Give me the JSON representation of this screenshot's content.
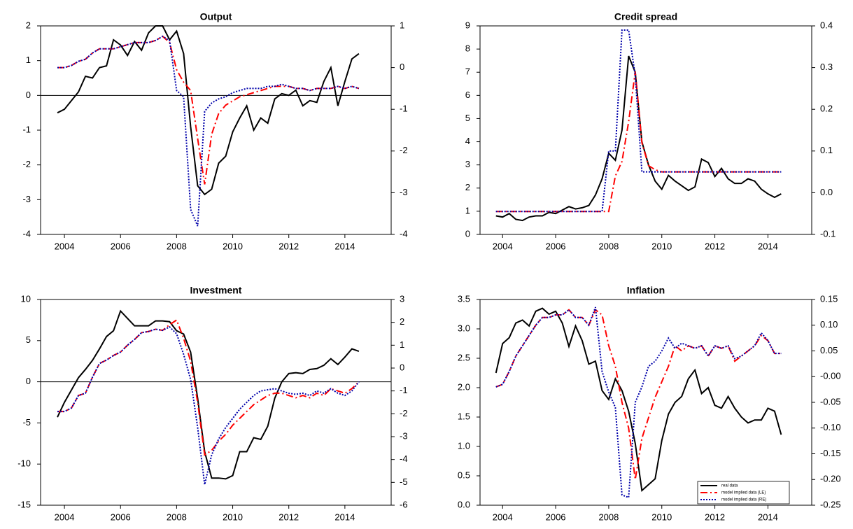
{
  "chart_data": [
    {
      "type": "line",
      "title": "Output",
      "zero_line": true,
      "x": [
        2003.75,
        2004,
        2004.25,
        2004.5,
        2004.75,
        2005,
        2005.25,
        2005.5,
        2005.75,
        2006,
        2006.25,
        2006.5,
        2006.75,
        2007,
        2007.25,
        2007.5,
        2007.75,
        2008,
        2008.25,
        2008.5,
        2008.75,
        2009,
        2009.25,
        2009.5,
        2009.75,
        2010,
        2010.25,
        2010.5,
        2010.75,
        2011,
        2011.25,
        2011.5,
        2011.75,
        2012,
        2012.25,
        2012.5,
        2012.75,
        2013,
        2013.25,
        2013.5,
        2013.75,
        2014,
        2014.25,
        2014.5
      ],
      "xlim": [
        2003.15,
        2015.65
      ],
      "xticks": [
        2004,
        2006,
        2008,
        2010,
        2012,
        2014
      ],
      "ylim": [
        -4,
        2
      ],
      "yticks": [
        -4,
        -3,
        -2,
        -1,
        0,
        1,
        2
      ],
      "y2lim": [
        -4,
        1
      ],
      "y2ticks": [
        -4,
        -3,
        -2,
        -1,
        0,
        1
      ],
      "series": [
        {
          "color": "#000000",
          "linestyle": "solid",
          "values": [
            -0.5,
            -0.4,
            -0.15,
            0.1,
            0.55,
            0.5,
            0.8,
            0.85,
            1.6,
            1.45,
            1.15,
            1.55,
            1.3,
            1.8,
            2.0,
            2.0,
            1.6,
            1.85,
            1.2,
            -0.9,
            -2.6,
            -2.85,
            -2.7,
            -1.95,
            -1.75,
            -1.05,
            -0.65,
            -0.3,
            -1.0,
            -0.65,
            -0.8,
            -0.1,
            0.05,
            0.0,
            0.15,
            -0.3,
            -0.15,
            -0.2,
            0.4,
            0.8,
            -0.3,
            0.4,
            1.05,
            1.2
          ]
        },
        {
          "color": "#ff0000",
          "linestyle": "dashdot",
          "axis": "y2",
          "values": [
            0,
            0,
            0.05,
            0.15,
            0.2,
            0.35,
            0.45,
            0.45,
            0.45,
            0.5,
            0.55,
            0.6,
            0.6,
            0.6,
            0.65,
            0.75,
            0.6,
            -0.05,
            -0.35,
            -0.55,
            -1.7,
            -2.8,
            -1.6,
            -1.1,
            -0.9,
            -0.8,
            -0.7,
            -0.65,
            -0.6,
            -0.55,
            -0.5,
            -0.45,
            -0.45,
            -0.45,
            -0.5,
            -0.5,
            -0.55,
            -0.5,
            -0.5,
            -0.5,
            -0.45,
            -0.5,
            -0.45,
            -0.5
          ]
        },
        {
          "color": "#0000aa",
          "linestyle": "dotted",
          "axis": "y2",
          "values": [
            0,
            0,
            0.05,
            0.15,
            0.2,
            0.35,
            0.45,
            0.45,
            0.45,
            0.5,
            0.55,
            0.6,
            0.6,
            0.6,
            0.65,
            0.75,
            0.65,
            -0.55,
            -0.7,
            -3.4,
            -3.8,
            -1.05,
            -0.85,
            -0.75,
            -0.7,
            -0.6,
            -0.55,
            -0.5,
            -0.5,
            -0.5,
            -0.45,
            -0.45,
            -0.4,
            -0.45,
            -0.5,
            -0.5,
            -0.55,
            -0.5,
            -0.5,
            -0.5,
            -0.45,
            -0.5,
            -0.45,
            -0.5
          ]
        }
      ]
    },
    {
      "type": "line",
      "title": "Credit spread",
      "zero_line": false,
      "x": [
        2003.75,
        2004,
        2004.25,
        2004.5,
        2004.75,
        2005,
        2005.25,
        2005.5,
        2005.75,
        2006,
        2006.25,
        2006.5,
        2006.75,
        2007,
        2007.25,
        2007.5,
        2007.75,
        2008,
        2008.25,
        2008.5,
        2008.75,
        2009,
        2009.25,
        2009.5,
        2009.75,
        2010,
        2010.25,
        2010.5,
        2010.75,
        2011,
        2011.25,
        2011.5,
        2011.75,
        2012,
        2012.25,
        2012.5,
        2012.75,
        2013,
        2013.25,
        2013.5,
        2013.75,
        2014,
        2014.25,
        2014.5
      ],
      "xlim": [
        2003.15,
        2015.65
      ],
      "xticks": [
        2004,
        2006,
        2008,
        2010,
        2012,
        2014
      ],
      "ylim": [
        0,
        9
      ],
      "yticks": [
        0,
        1,
        2,
        3,
        4,
        5,
        6,
        7,
        8,
        9
      ],
      "y2lim": [
        -0.1,
        0.4
      ],
      "y2ticks": [
        -0.1,
        {
          "value": 0,
          "label": "0.0"
        },
        0.1,
        0.2,
        0.3,
        0.4
      ],
      "series": [
        {
          "color": "#000000",
          "linestyle": "solid",
          "values": [
            0.8,
            0.75,
            0.9,
            0.65,
            0.6,
            0.75,
            0.8,
            0.8,
            0.95,
            0.9,
            1.05,
            1.2,
            1.1,
            1.15,
            1.25,
            1.7,
            2.4,
            3.5,
            3.2,
            4.5,
            7.7,
            7.0,
            4.0,
            3.0,
            2.3,
            1.95,
            2.55,
            2.3,
            2.1,
            1.9,
            2.05,
            3.25,
            3.1,
            2.5,
            2.85,
            2.4,
            2.2,
            2.2,
            2.4,
            2.3,
            1.95,
            1.75,
            1.6,
            1.75
          ]
        },
        {
          "color": "#ff0000",
          "linestyle": "dashdot",
          "axis": "y2",
          "values": [
            -0.045,
            -0.045,
            -0.045,
            -0.045,
            -0.045,
            -0.045,
            -0.045,
            -0.045,
            -0.045,
            -0.045,
            -0.045,
            -0.045,
            -0.045,
            -0.045,
            -0.045,
            -0.045,
            -0.045,
            -0.045,
            0.04,
            0.075,
            0.17,
            0.29,
            0.12,
            0.065,
            0.055,
            0.05,
            0.05,
            0.05,
            0.05,
            0.05,
            0.05,
            0.05,
            0.05,
            0.05,
            0.05,
            0.05,
            0.05,
            0.05,
            0.05,
            0.05,
            0.05,
            0.05,
            0.05,
            0.05
          ]
        },
        {
          "color": "#0000aa",
          "linestyle": "dotted",
          "axis": "y2",
          "values": [
            -0.045,
            -0.045,
            -0.045,
            -0.045,
            -0.045,
            -0.045,
            -0.045,
            -0.045,
            -0.045,
            -0.045,
            -0.045,
            -0.045,
            -0.045,
            -0.045,
            -0.045,
            -0.045,
            -0.045,
            0.1,
            0.1,
            0.39,
            0.39,
            0.28,
            0.05,
            0.05,
            0.05,
            0.05,
            0.05,
            0.05,
            0.05,
            0.05,
            0.05,
            0.05,
            0.05,
            0.05,
            0.05,
            0.05,
            0.05,
            0.05,
            0.05,
            0.05,
            0.05,
            0.05,
            0.05,
            0.05
          ]
        }
      ]
    },
    {
      "type": "line",
      "title": "Investment",
      "zero_line": true,
      "x": [
        2003.75,
        2004,
        2004.25,
        2004.5,
        2004.75,
        2005,
        2005.25,
        2005.5,
        2005.75,
        2006,
        2006.25,
        2006.5,
        2006.75,
        2007,
        2007.25,
        2007.5,
        2007.75,
        2008,
        2008.25,
        2008.5,
        2008.75,
        2009,
        2009.25,
        2009.5,
        2009.75,
        2010,
        2010.25,
        2010.5,
        2010.75,
        2011,
        2011.25,
        2011.5,
        2011.75,
        2012,
        2012.25,
        2012.5,
        2012.75,
        2013,
        2013.25,
        2013.5,
        2013.75,
        2014,
        2014.25,
        2014.5
      ],
      "xlim": [
        2003.15,
        2015.65
      ],
      "xticks": [
        2004,
        2006,
        2008,
        2010,
        2012,
        2014
      ],
      "ylim": [
        -15,
        10
      ],
      "yticks": [
        -15,
        -10,
        -5,
        0,
        5,
        10
      ],
      "y2lim": [
        -6,
        3
      ],
      "y2ticks": [
        -6,
        -5,
        -4,
        -3,
        -2,
        -1,
        0,
        1,
        2,
        3
      ],
      "series": [
        {
          "color": "#000000",
          "linestyle": "solid",
          "values": [
            -4.3,
            -2.5,
            -1.0,
            0.5,
            1.5,
            2.6,
            4.0,
            5.5,
            6.2,
            8.6,
            7.7,
            6.8,
            6.8,
            6.8,
            7.4,
            7.4,
            7.3,
            6.2,
            5.8,
            3.6,
            -2.0,
            -8.5,
            -11.7,
            -11.7,
            -11.8,
            -11.4,
            -8.5,
            -8.5,
            -6.8,
            -7.0,
            -5.4,
            -2.0,
            0.0,
            1.0,
            1.1,
            1.0,
            1.5,
            1.6,
            2.0,
            2.8,
            2.1,
            3.0,
            4.0,
            3.7
          ]
        },
        {
          "color": "#ff0000",
          "linestyle": "dashdot",
          "axis": "y2",
          "values": [
            -1.9,
            -1.9,
            -1.75,
            -1.2,
            -1.1,
            -0.4,
            0.2,
            0.35,
            0.55,
            0.7,
            1.0,
            1.25,
            1.55,
            1.6,
            1.7,
            1.65,
            1.9,
            2.1,
            1.3,
            0.3,
            -1.5,
            -3.8,
            -3.6,
            -3.2,
            -2.9,
            -2.5,
            -2.2,
            -1.9,
            -1.6,
            -1.4,
            -1.2,
            -1.1,
            -1.1,
            -1.2,
            -1.3,
            -1.2,
            -1.3,
            -1.1,
            -1.2,
            -0.9,
            -1.0,
            -1.1,
            -0.9,
            -0.6
          ]
        },
        {
          "color": "#0000aa",
          "linestyle": "dotted",
          "axis": "y2",
          "values": [
            -1.9,
            -1.9,
            -1.75,
            -1.2,
            -1.1,
            -0.4,
            0.2,
            0.35,
            0.55,
            0.7,
            1.0,
            1.25,
            1.55,
            1.6,
            1.7,
            1.65,
            1.8,
            1.5,
            0.6,
            -0.5,
            -2.6,
            -5.1,
            -3.8,
            -3.1,
            -2.6,
            -2.2,
            -1.8,
            -1.5,
            -1.2,
            -1.0,
            -0.95,
            -0.9,
            -1.0,
            -1.1,
            -1.15,
            -1.1,
            -1.2,
            -1.0,
            -1.1,
            -0.9,
            -1.1,
            -1.2,
            -1.0,
            -0.6
          ]
        }
      ]
    },
    {
      "type": "line",
      "title": "Inflation",
      "zero_line": false,
      "legend": "lower right",
      "x": [
        2003.75,
        2004,
        2004.25,
        2004.5,
        2004.75,
        2005,
        2005.25,
        2005.5,
        2005.75,
        2006,
        2006.25,
        2006.5,
        2006.75,
        2007,
        2007.25,
        2007.5,
        2007.75,
        2008,
        2008.25,
        2008.5,
        2008.75,
        2009,
        2009.25,
        2009.5,
        2009.75,
        2010,
        2010.25,
        2010.5,
        2010.75,
        2011,
        2011.25,
        2011.5,
        2011.75,
        2012,
        2012.25,
        2012.5,
        2012.75,
        2013,
        2013.25,
        2013.5,
        2013.75,
        2014,
        2014.25,
        2014.5
      ],
      "xlim": [
        2003.15,
        2015.65
      ],
      "xticks": [
        2004,
        2006,
        2008,
        2010,
        2012,
        2014
      ],
      "ylim": [
        0,
        3.5
      ],
      "yticks": [
        {
          "value": 0,
          "label": "0.0"
        },
        0.5,
        {
          "value": 1,
          "label": "1.0"
        },
        1.5,
        {
          "value": 2,
          "label": "2.0"
        },
        2.5,
        {
          "value": 3,
          "label": "3.0"
        },
        3.5
      ],
      "y2lim": [
        -0.25,
        0.15
      ],
      "y2ticks": [
        -0.25,
        {
          "value": -0.2,
          "label": "-0.20"
        },
        -0.15,
        {
          "value": -0.1,
          "label": "-0.10"
        },
        -0.05,
        {
          "value": 0,
          "label": "-0.00"
        },
        0.05,
        {
          "value": 0.1,
          "label": "0.10"
        },
        0.15
      ],
      "series": [
        {
          "name": "real data",
          "color": "#000000",
          "linestyle": "solid",
          "values": [
            2.25,
            2.75,
            2.85,
            3.1,
            3.15,
            3.05,
            3.3,
            3.35,
            3.25,
            3.3,
            3.1,
            2.7,
            3.05,
            2.8,
            2.4,
            2.45,
            1.95,
            1.8,
            2.15,
            1.95,
            1.6,
            1.05,
            0.25,
            0.35,
            0.45,
            1.1,
            1.55,
            1.75,
            1.85,
            2.15,
            2.3,
            1.9,
            2.0,
            1.7,
            1.65,
            1.85,
            1.65,
            1.5,
            1.4,
            1.45,
            1.45,
            1.65,
            1.6,
            1.2
          ]
        },
        {
          "name": "model implied data (LE)",
          "color": "#ff0000",
          "linestyle": "dashdot",
          "axis": "y2",
          "values": [
            -0.02,
            -0.015,
            0.01,
            0.04,
            0.06,
            0.08,
            0.1,
            0.115,
            0.115,
            0.12,
            0.12,
            0.13,
            0.115,
            0.115,
            0.1,
            0.13,
            0.12,
            0.06,
            0.02,
            -0.05,
            -0.1,
            -0.2,
            -0.12,
            -0.08,
            -0.04,
            -0.01,
            0.02,
            0.06,
            0.05,
            0.06,
            0.055,
            0.06,
            0.04,
            0.06,
            0.055,
            0.06,
            0.03,
            0.04,
            0.05,
            0.06,
            0.08,
            0.07,
            0.045,
            0.045
          ]
        },
        {
          "name": "model implied data (RE)",
          "color": "#0000aa",
          "linestyle": "dotted",
          "axis": "y2",
          "values": [
            -0.02,
            -0.015,
            0.01,
            0.04,
            0.06,
            0.08,
            0.1,
            0.115,
            0.115,
            0.12,
            0.12,
            0.13,
            0.115,
            0.115,
            0.1,
            0.135,
            0.01,
            -0.03,
            -0.06,
            -0.23,
            -0.235,
            -0.05,
            -0.02,
            0.02,
            0.03,
            0.05,
            0.075,
            0.055,
            0.065,
            0.06,
            0.055,
            0.06,
            0.04,
            0.06,
            0.055,
            0.06,
            0.035,
            0.04,
            0.05,
            0.06,
            0.085,
            0.07,
            0.045,
            0.045
          ]
        }
      ]
    }
  ]
}
